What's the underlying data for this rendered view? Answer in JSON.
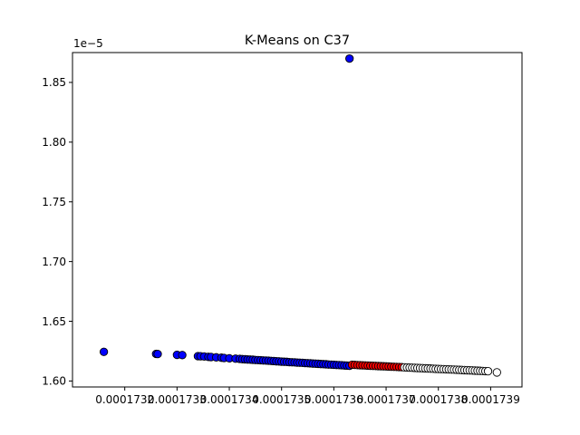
{
  "chart_data": {
    "type": "scatter",
    "title": "K-Means on C37",
    "xlabel": "",
    "ylabel": "",
    "y_offset_label": "1e−5",
    "xlim": [
      0.0001731,
      0.00017396
    ],
    "ylim": [
      1.595,
      1.875
    ],
    "x_ticks": [
      {
        "value": 0.0001732,
        "label": "0.0001732"
      },
      {
        "value": 0.0001733,
        "label": "0.0001733"
      },
      {
        "value": 0.0001734,
        "label": "0.0001734"
      },
      {
        "value": 0.0001735,
        "label": "0.0001735"
      },
      {
        "value": 0.0001736,
        "label": "0.0001736"
      },
      {
        "value": 0.0001737,
        "label": "0.0001737"
      },
      {
        "value": 0.0001738,
        "label": "0.0001738"
      },
      {
        "value": 0.0001739,
        "label": "0.0001739"
      }
    ],
    "y_ticks": [
      {
        "value": 1.6,
        "label": "1.60"
      },
      {
        "value": 1.65,
        "label": "1.65"
      },
      {
        "value": 1.7,
        "label": "1.70"
      },
      {
        "value": 1.75,
        "label": "1.75"
      },
      {
        "value": 1.8,
        "label": "1.80"
      },
      {
        "value": 1.85,
        "label": "1.85"
      }
    ],
    "grid": false,
    "legend": "none",
    "line_fit": {
      "x0": 0.0001732,
      "y0": 1.6245,
      "x1": 0.0001739,
      "y1": 1.6074
    },
    "series": [
      {
        "color": "#0000ff",
        "x": [
          0.00017316,
          0.00017326,
          0.000173263,
          0.0001733,
          0.00017331,
          0.00017334,
          0.000173345,
          0.000173352,
          0.00017336,
          0.000173365,
          0.000173375,
          0.000173385,
          0.00017339,
          0.0001734,
          0.000173412,
          0.00017342,
          0.000173425,
          0.00017343,
          0.000173435,
          0.00017344,
          0.000173445,
          0.00017345,
          0.000173455,
          0.00017346,
          0.000173465,
          0.00017347,
          0.000173475,
          0.00017348,
          0.000173485,
          0.00017349,
          0.000173495,
          0.0001735,
          0.000173505,
          0.00017351,
          0.000173515,
          0.00017352,
          0.000173525,
          0.00017353,
          0.000173535,
          0.00017354,
          0.000173545,
          0.00017355,
          0.000173555,
          0.00017356,
          0.000173565,
          0.00017357,
          0.000173575,
          0.00017358,
          0.000173585,
          0.00017359,
          0.000173595,
          0.0001736,
          0.000173605,
          0.00017361,
          0.000173615,
          0.00017362,
          0.000173625,
          0.00017363
        ],
        "y": [
          1.6244,
          1.6227,
          1.6226,
          1.6219,
          1.6217,
          1.6208,
          1.6207,
          1.6205,
          1.6202,
          1.6201,
          1.6198,
          1.6195,
          1.6193,
          1.619,
          1.6187,
          1.6185,
          1.6183,
          1.6182,
          1.618,
          1.6179,
          1.6178,
          1.6176,
          1.6175,
          1.6174,
          1.6172,
          1.6171,
          1.617,
          1.6168,
          1.6167,
          1.6165,
          1.6164,
          1.6162,
          1.6161,
          1.616,
          1.6158,
          1.6157,
          1.6156,
          1.6154,
          1.6153,
          1.6152,
          1.615,
          1.6149,
          1.6148,
          1.6146,
          1.6145,
          1.6144,
          1.6142,
          1.6141,
          1.614,
          1.6138,
          1.6137,
          1.6136,
          1.6134,
          1.6133,
          1.6132,
          1.613,
          1.6129,
          1.6128
        ]
      },
      {
        "color": "#0000ff",
        "x": [
          0.00017363
        ],
        "y": [
          1.87
        ]
      },
      {
        "color": "#ff0000",
        "x": [
          0.000173635,
          0.00017364,
          0.000173645,
          0.00017365,
          0.000173655,
          0.00017366,
          0.000173665,
          0.00017367,
          0.000173675,
          0.00017368,
          0.000173685,
          0.00017369,
          0.000173695,
          0.0001737,
          0.000173705,
          0.00017371,
          0.000173715,
          0.00017372,
          0.000173725,
          0.00017373
        ],
        "y": [
          1.6136,
          1.6135,
          1.6133,
          1.6132,
          1.6131,
          1.613,
          1.6129,
          1.6128,
          1.6127,
          1.6126,
          1.6125,
          1.6124,
          1.6123,
          1.6122,
          1.6121,
          1.612,
          1.6119,
          1.6118,
          1.6117,
          1.6116
        ]
      },
      {
        "color": "#ffffff",
        "x": [
          0.000173735,
          0.00017374,
          0.000173745,
          0.00017375,
          0.000173755,
          0.00017376,
          0.000173765,
          0.00017377,
          0.000173775,
          0.00017378,
          0.000173785,
          0.00017379,
          0.000173795,
          0.0001738,
          0.000173805,
          0.00017381,
          0.000173815,
          0.00017382,
          0.000173825,
          0.00017383,
          0.000173835,
          0.00017384,
          0.000173845,
          0.00017385,
          0.000173855,
          0.00017386,
          0.000173865,
          0.00017387,
          0.000173875,
          0.00017388,
          0.000173885,
          0.00017389,
          0.000173895,
          0.000173912
        ],
        "y": [
          1.6114,
          1.6113,
          1.6112,
          1.6111,
          1.611,
          1.6109,
          1.6108,
          1.6107,
          1.6106,
          1.6105,
          1.6104,
          1.6103,
          1.6102,
          1.6101,
          1.61,
          1.6099,
          1.6098,
          1.6097,
          1.6096,
          1.6095,
          1.6094,
          1.6093,
          1.6092,
          1.6091,
          1.609,
          1.6089,
          1.6088,
          1.6087,
          1.6086,
          1.6085,
          1.6084,
          1.6083,
          1.6082,
          1.6072
        ]
      }
    ]
  }
}
